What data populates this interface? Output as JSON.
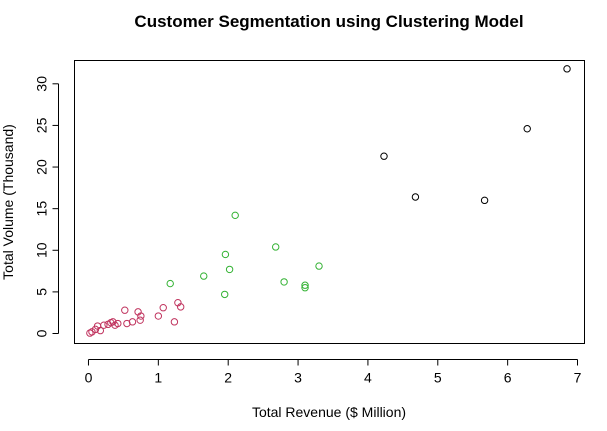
{
  "chart_data": {
    "type": "scatter",
    "title": "Customer Segmentation using Clustering Model",
    "xlabel": "Total Revenue ($ Million)",
    "ylabel": "Total Volume (Thousand)",
    "xlim": [
      -0.2,
      7.1
    ],
    "ylim": [
      -1.2,
      32.8
    ],
    "x_ticks": [
      0,
      1,
      2,
      3,
      4,
      5,
      6,
      7
    ],
    "y_ticks": [
      0,
      5,
      10,
      15,
      20,
      25,
      30
    ],
    "grid": false,
    "legend": "none",
    "marker": "open-circle",
    "series": [
      {
        "color": "#c0335e",
        "points": [
          [
            0.02,
            0.05
          ],
          [
            0.05,
            0.2
          ],
          [
            0.1,
            0.5
          ],
          [
            0.13,
            0.9
          ],
          [
            0.17,
            0.35
          ],
          [
            0.22,
            1.0
          ],
          [
            0.28,
            1.1
          ],
          [
            0.32,
            1.3
          ],
          [
            0.35,
            1.4
          ],
          [
            0.38,
            1.0
          ],
          [
            0.42,
            1.2
          ],
          [
            0.52,
            2.8
          ],
          [
            0.55,
            1.2
          ],
          [
            0.63,
            1.4
          ],
          [
            0.71,
            2.6
          ],
          [
            0.74,
            1.6
          ],
          [
            0.75,
            2.1
          ],
          [
            1.0,
            2.1
          ],
          [
            1.07,
            3.1
          ],
          [
            1.23,
            1.4
          ],
          [
            1.28,
            3.7
          ],
          [
            1.32,
            3.2
          ]
        ]
      },
      {
        "color": "#33b233",
        "points": [
          [
            1.17,
            6.0
          ],
          [
            1.65,
            6.9
          ],
          [
            1.95,
            4.7
          ],
          [
            1.96,
            9.5
          ],
          [
            2.02,
            7.7
          ],
          [
            2.1,
            14.2
          ],
          [
            2.68,
            10.4
          ],
          [
            2.8,
            6.2
          ],
          [
            3.1,
            5.5
          ],
          [
            3.1,
            5.8
          ],
          [
            3.3,
            8.1
          ]
        ]
      },
      {
        "color": "#000000",
        "points": [
          [
            4.23,
            21.3
          ],
          [
            4.68,
            16.4
          ],
          [
            5.67,
            16.0
          ],
          [
            6.28,
            24.6
          ],
          [
            6.85,
            31.8
          ]
        ]
      }
    ]
  }
}
